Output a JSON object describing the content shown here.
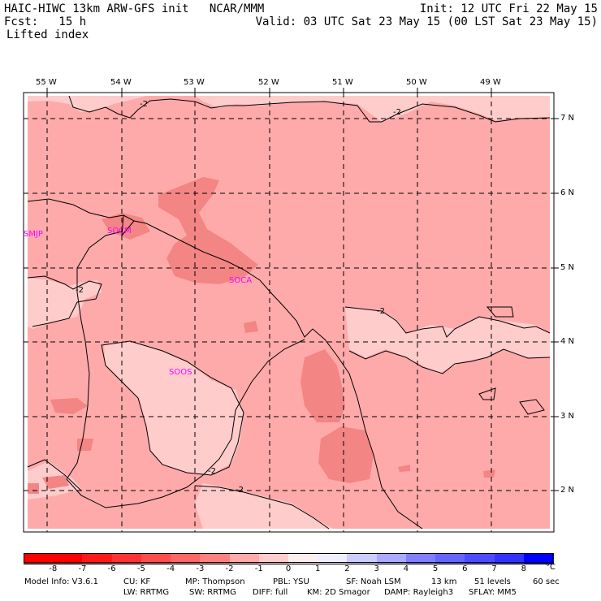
{
  "header": {
    "title": "HAIC-HIWC 13km ARW-GFS init   NCAR/MMM",
    "forecast": "Fcst:   15 h",
    "field": "Lifted index",
    "init": "Init: 12 UTC Fri 22 May 15",
    "valid": "Valid: 03 UTC Sat 23 May 15 (00 LST Sat 23 May 15)"
  },
  "map": {
    "longitude_labels": [
      "55 W",
      "54 W",
      "53 W",
      "52 W",
      "51 W",
      "50 W",
      "49 W"
    ],
    "latitude_labels": [
      "7 N",
      "6 N",
      "5 N",
      "4 N",
      "3 N",
      "2 N"
    ],
    "stations": [
      "SMJP",
      "SOCM",
      "SOCA",
      "SOOS"
    ],
    "contour_labels": [
      "-2",
      "-2",
      "-2",
      "-2",
      "-2",
      "-2"
    ],
    "colors": {
      "base": "#ffaaaa",
      "light": "#ffcccc",
      "dark": "#f48585",
      "station": "#ff00ff",
      "grid": "#000000"
    }
  },
  "colorbar": {
    "labels": [
      "-8",
      "-7",
      "-6",
      "-5",
      "-4",
      "-3",
      "-2",
      "-1",
      "0",
      "1",
      "2",
      "3",
      "4",
      "5",
      "6",
      "7",
      "8"
    ],
    "unit": "°C",
    "colors": [
      "#ff0000",
      "#ff1a1a",
      "#ff3333",
      "#ff4d4d",
      "#ff6666",
      "#ff8080",
      "#ffaaaa",
      "#ffcccc",
      "#ffeeee",
      "#eeeeff",
      "#ccccff",
      "#aaaaff",
      "#8080ff",
      "#6666ff",
      "#4d4dff",
      "#3333ff",
      "#0000ff"
    ]
  },
  "footer": {
    "line1": [
      "Model Info: V3.6.1",
      "CU: KF",
      "MP: Thompson",
      "PBL: YSU",
      "SF: Noah LSM",
      "13 km",
      "51 levels",
      "60 sec"
    ],
    "line2": [
      "LW: RRTMG",
      "SW: RRTMG",
      "DIFF: full",
      "KM: 2D Smagor",
      "DAMP: Rayleigh3",
      "SFLAY: MM5"
    ]
  }
}
